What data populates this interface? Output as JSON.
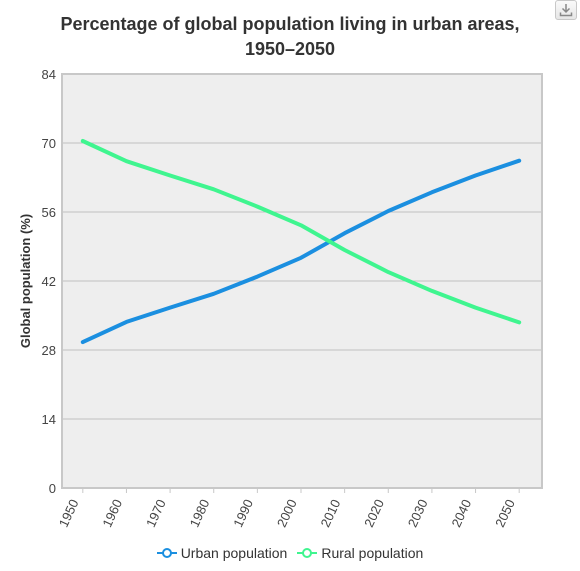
{
  "chart_data": {
    "type": "line",
    "title_lines": [
      "Percentage of global population living in urban areas,",
      "1950–2050"
    ],
    "xlabel": "",
    "ylabel": "Global population (%)",
    "categories": [
      "1950",
      "1960",
      "1970",
      "1980",
      "1990",
      "2000",
      "2010",
      "2020",
      "2030",
      "2040",
      "2050"
    ],
    "ylim": [
      0,
      84
    ],
    "yticks": [
      "0",
      "14",
      "28",
      "42",
      "56",
      "70",
      "84"
    ],
    "grid": true,
    "legend_position": "bottom",
    "series": [
      {
        "name": "Urban population",
        "color": "#1b8fe0",
        "values": [
          29.6,
          33.7,
          36.6,
          39.4,
          42.9,
          46.7,
          51.7,
          56.2,
          60.0,
          63.4,
          66.4
        ]
      },
      {
        "name": "Rural population",
        "color": "#3ff58f",
        "values": [
          70.4,
          66.3,
          63.4,
          60.6,
          57.1,
          53.3,
          48.3,
          43.8,
          40.0,
          36.6,
          33.6
        ]
      }
    ]
  },
  "toolbar": {
    "download_icon": "download-icon"
  }
}
